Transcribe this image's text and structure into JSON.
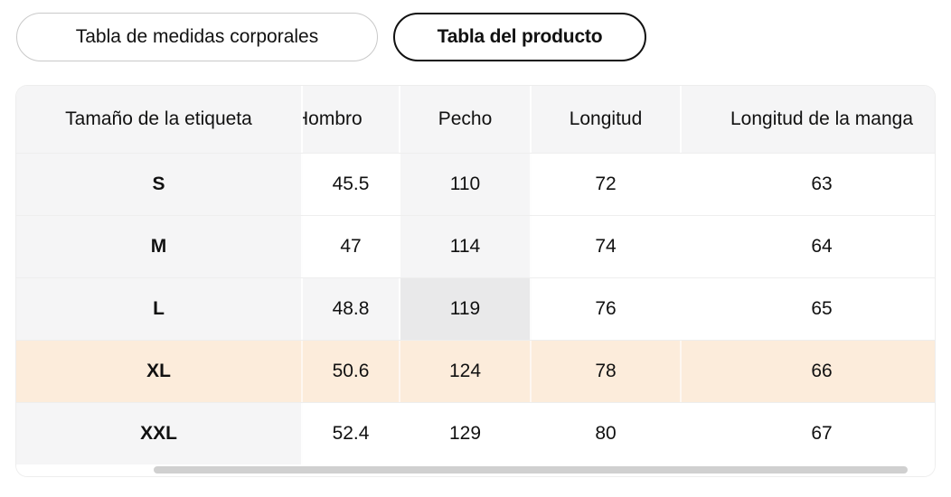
{
  "tabs": [
    {
      "label": "Tabla de medidas corporales",
      "selected": false
    },
    {
      "label": "Tabla del producto",
      "selected": true
    }
  ],
  "table": {
    "columns": [
      "Tamaño de la etiqueta",
      "Hombro",
      "Pecho",
      "Longitud",
      "Longitud de la manga"
    ],
    "rows": [
      {
        "size": "S",
        "values": [
          "45.5",
          "110",
          "72",
          "63"
        ]
      },
      {
        "size": "M",
        "values": [
          "47",
          "114",
          "74",
          "64"
        ]
      },
      {
        "size": "L",
        "values": [
          "48.8",
          "119",
          "76",
          "65"
        ]
      },
      {
        "size": "XL",
        "values": [
          "50.6",
          "124",
          "78",
          "66"
        ]
      },
      {
        "size": "XXL",
        "values": [
          "52.4",
          "129",
          "80",
          "67"
        ]
      }
    ],
    "highlight": {
      "selected_row": "XL",
      "hovered_cell": {
        "row": "L",
        "column": "Pecho"
      }
    },
    "scroll": {
      "orientation": "horizontal",
      "note": "second column 'Hombro' partially hidden under sticky first column; last column clipped at right edge"
    }
  },
  "colors": {
    "header_bg": "#f5f5f6",
    "cell_highlight": "#f5f5f6",
    "hover_cell_bg": "#e9e9ea",
    "selected_row_bg": "#fcecdb",
    "row_divider": "#eeeeee",
    "sheet_border": "#ededed",
    "scrollbar": "#d0d0d0",
    "tab_border": "#c9c9c9",
    "tab_selected_border": "#111111",
    "text": "#111111"
  }
}
